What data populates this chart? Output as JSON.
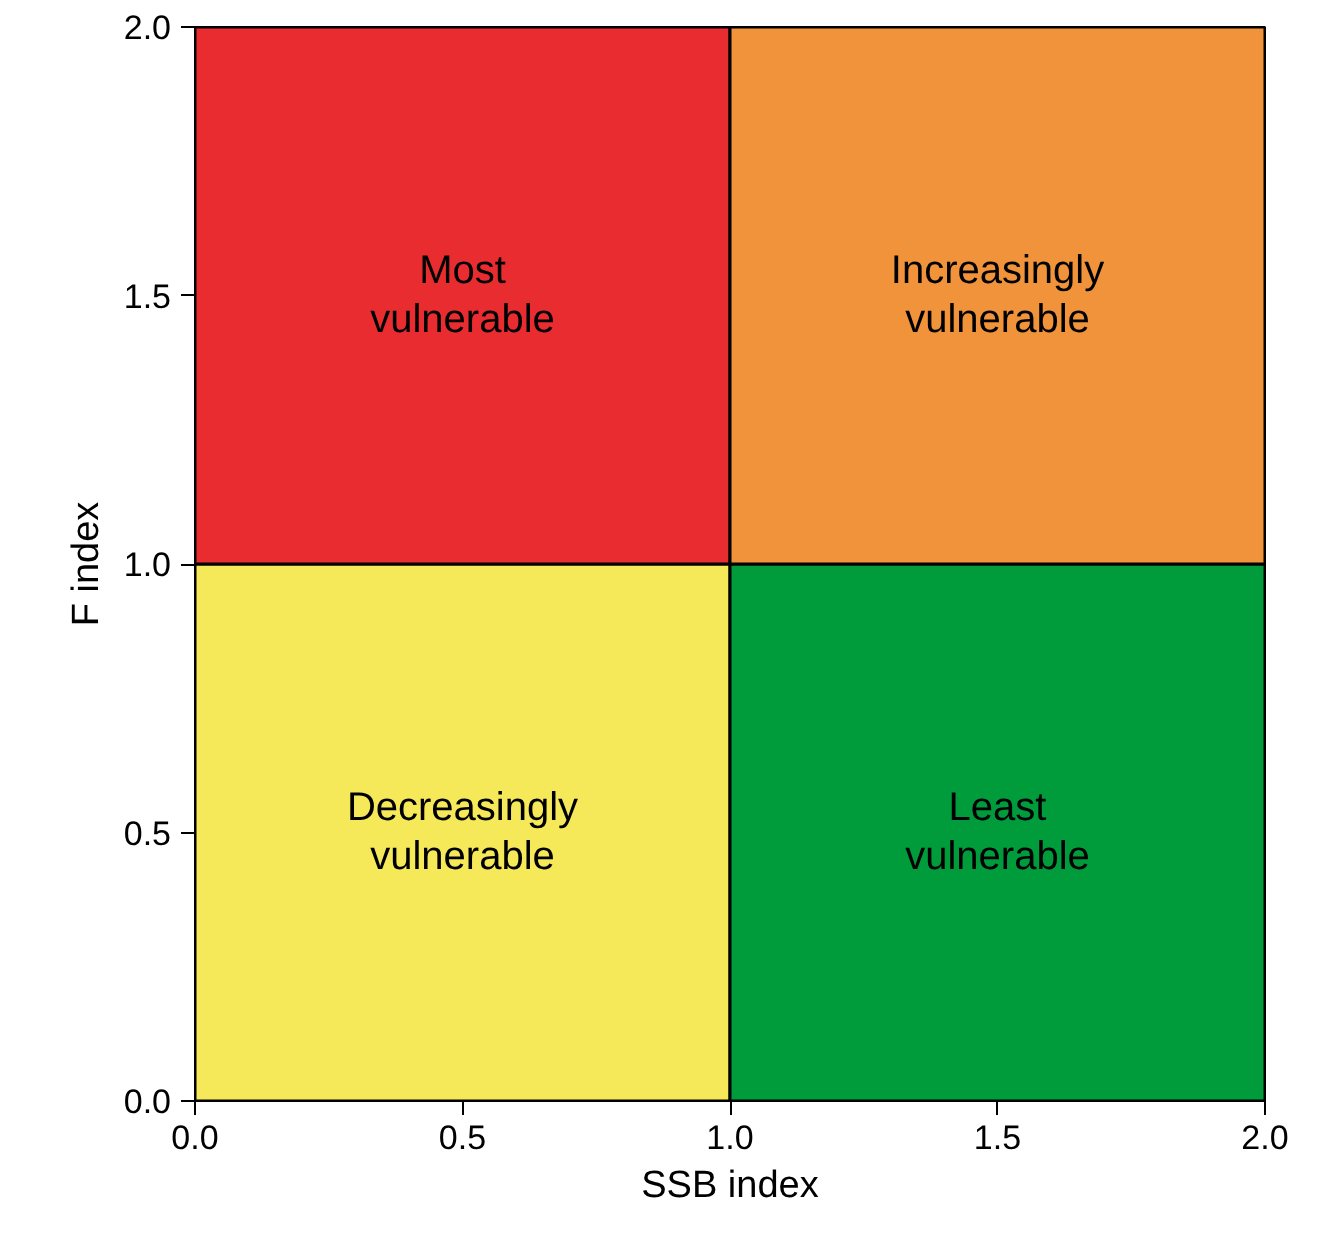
{
  "chart_data": {
    "type": "bar",
    "stacked": true,
    "xlabel": "SSB index",
    "ylabel": "F index",
    "x": [
      0.5,
      1.5
    ],
    "series": [
      {
        "colors": [
          "#f5e95a",
          "#009b3a"
        ],
        "values": [
          1,
          1
        ],
        "value_labels": [
          "Decreasingly\nvulnerable",
          "Least\nvulnerable"
        ]
      },
      {
        "colors": [
          "#e82c30",
          "#f0933b"
        ],
        "values": [
          1,
          1
        ],
        "value_labels": [
          "Most\nvulnerable",
          "Increasingly\nvulnerable"
        ]
      }
    ],
    "xlim": [
      0,
      2
    ],
    "ylim": [
      0,
      2
    ],
    "xticks": [
      {
        "value": 0,
        "label": "0.0"
      },
      {
        "value": 0.5,
        "label": "0.5"
      },
      {
        "value": 1,
        "label": "1.0"
      },
      {
        "value": 1.5,
        "label": "1.5"
      },
      {
        "value": 2,
        "label": "2.0"
      }
    ],
    "yticks": [
      {
        "value": 0,
        "label": "0.0"
      },
      {
        "value": 0.5,
        "label": "0.5"
      },
      {
        "value": 1,
        "label": "1.0"
      },
      {
        "value": 1.5,
        "label": "1.5"
      },
      {
        "value": 2,
        "label": "2.0"
      }
    ]
  }
}
